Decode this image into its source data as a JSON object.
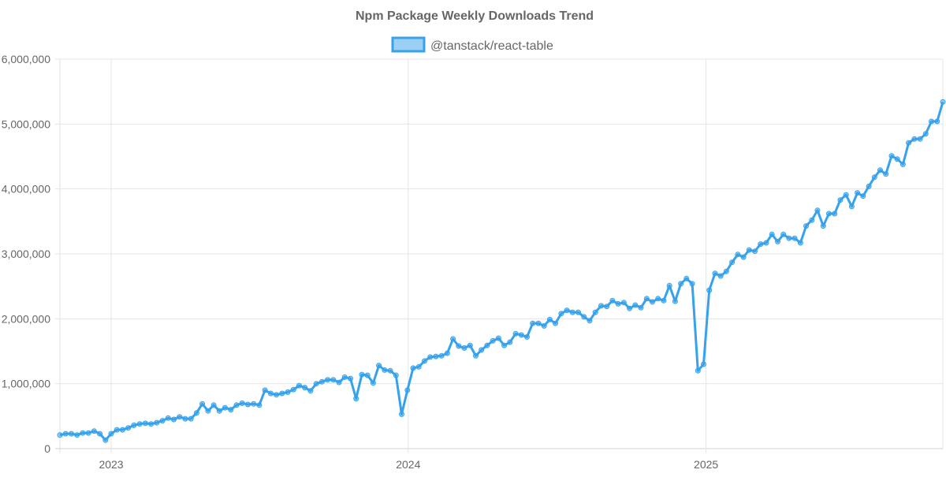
{
  "chart_data": {
    "type": "line",
    "title": "Npm Package Weekly Downloads Trend",
    "legend": {
      "position": "top",
      "entries": [
        "@tanstack/react-table"
      ]
    },
    "colors": {
      "line": "#36A2EB",
      "fill": "#9AD0F5",
      "grid": "#e5e5e5",
      "text": "#666666"
    },
    "grid": true,
    "ylim": [
      0,
      6000000
    ],
    "y_ticks": [
      "0",
      "1,000,000",
      "2,000,000",
      "3,000,000",
      "4,000,000",
      "5,000,000",
      "6,000,000"
    ],
    "x_ticks": [
      "2023",
      "2024",
      "2025"
    ],
    "series": [
      {
        "name": "@tanstack/react-table",
        "x": [
          "2022-10-30",
          "2022-11-06",
          "2022-11-13",
          "2022-11-20",
          "2022-11-27",
          "2022-12-04",
          "2022-12-11",
          "2022-12-18",
          "2022-12-25",
          "2023-01-01",
          "2023-01-08",
          "2023-01-15",
          "2023-01-22",
          "2023-01-29",
          "2023-02-05",
          "2023-02-12",
          "2023-02-19",
          "2023-02-26",
          "2023-03-05",
          "2023-03-12",
          "2023-03-19",
          "2023-03-26",
          "2023-04-02",
          "2023-04-09",
          "2023-04-16",
          "2023-04-23",
          "2023-04-30",
          "2023-05-07",
          "2023-05-14",
          "2023-05-21",
          "2023-05-28",
          "2023-06-04",
          "2023-06-11",
          "2023-06-18",
          "2023-06-25",
          "2023-07-02",
          "2023-07-09",
          "2023-07-16",
          "2023-07-23",
          "2023-07-30",
          "2023-08-06",
          "2023-08-13",
          "2023-08-20",
          "2023-08-27",
          "2023-09-03",
          "2023-09-10",
          "2023-09-17",
          "2023-09-24",
          "2023-10-01",
          "2023-10-08",
          "2023-10-15",
          "2023-10-22",
          "2023-10-29",
          "2023-11-05",
          "2023-11-12",
          "2023-11-19",
          "2023-11-26",
          "2023-12-03",
          "2023-12-10",
          "2023-12-17",
          "2023-12-24",
          "2023-12-31",
          "2024-01-07",
          "2024-01-14",
          "2024-01-21",
          "2024-01-28",
          "2024-02-04",
          "2024-02-11",
          "2024-02-18",
          "2024-02-25",
          "2024-03-03",
          "2024-03-10",
          "2024-03-17",
          "2024-03-24",
          "2024-03-31",
          "2024-04-07",
          "2024-04-14",
          "2024-04-21",
          "2024-04-28",
          "2024-05-05",
          "2024-05-12",
          "2024-05-19",
          "2024-05-26",
          "2024-06-02",
          "2024-06-09",
          "2024-06-16",
          "2024-06-23",
          "2024-06-30",
          "2024-07-07",
          "2024-07-14",
          "2024-07-21",
          "2024-07-28",
          "2024-08-04",
          "2024-08-11",
          "2024-08-18",
          "2024-08-25",
          "2024-09-01",
          "2024-09-08",
          "2024-09-15",
          "2024-09-22",
          "2024-09-29",
          "2024-10-06",
          "2024-10-13",
          "2024-10-20",
          "2024-10-27",
          "2024-11-03",
          "2024-11-10",
          "2024-11-17",
          "2024-11-24",
          "2024-12-01",
          "2024-12-08",
          "2024-12-15",
          "2024-12-22",
          "2024-12-29",
          "2025-01-05",
          "2025-01-12",
          "2025-01-19",
          "2025-01-26",
          "2025-02-02",
          "2025-02-09",
          "2025-02-16",
          "2025-02-23",
          "2025-03-02",
          "2025-03-09",
          "2025-03-16",
          "2025-03-23",
          "2025-03-30",
          "2025-04-06",
          "2025-04-13",
          "2025-04-20",
          "2025-04-27",
          "2025-05-04",
          "2025-05-11",
          "2025-05-18",
          "2025-05-25",
          "2025-06-01",
          "2025-06-08",
          "2025-06-15",
          "2025-06-22",
          "2025-06-29",
          "2025-07-06",
          "2025-07-13",
          "2025-07-20",
          "2025-07-27",
          "2025-08-03",
          "2025-08-10",
          "2025-08-17",
          "2025-08-24",
          "2025-08-31",
          "2025-09-07",
          "2025-09-14",
          "2025-09-21",
          "2025-09-28",
          "2025-10-05",
          "2025-10-12",
          "2025-10-19"
        ],
        "values": [
          210000,
          230000,
          230000,
          210000,
          240000,
          240000,
          270000,
          230000,
          130000,
          230000,
          290000,
          290000,
          320000,
          360000,
          380000,
          390000,
          380000,
          400000,
          430000,
          470000,
          450000,
          490000,
          460000,
          460000,
          550000,
          690000,
          580000,
          670000,
          580000,
          630000,
          600000,
          670000,
          700000,
          680000,
          690000,
          670000,
          900000,
          850000,
          830000,
          850000,
          870000,
          910000,
          970000,
          940000,
          890000,
          1000000,
          1030000,
          1060000,
          1060000,
          1020000,
          1100000,
          1080000,
          770000,
          1140000,
          1130000,
          1010000,
          1280000,
          1210000,
          1200000,
          1130000,
          530000,
          900000,
          1240000,
          1260000,
          1350000,
          1410000,
          1420000,
          1430000,
          1470000,
          1690000,
          1580000,
          1550000,
          1590000,
          1430000,
          1520000,
          1590000,
          1660000,
          1700000,
          1590000,
          1640000,
          1770000,
          1750000,
          1720000,
          1930000,
          1930000,
          1890000,
          1990000,
          1930000,
          2080000,
          2130000,
          2100000,
          2100000,
          2030000,
          1970000,
          2100000,
          2200000,
          2190000,
          2280000,
          2230000,
          2250000,
          2160000,
          2210000,
          2170000,
          2310000,
          2260000,
          2310000,
          2280000,
          2510000,
          2270000,
          2540000,
          2620000,
          2540000,
          1200000,
          1300000,
          2440000,
          2700000,
          2660000,
          2730000,
          2870000,
          2990000,
          2950000,
          3060000,
          3040000,
          3150000,
          3170000,
          3300000,
          3190000,
          3300000,
          3240000,
          3240000,
          3170000,
          3430000,
          3520000,
          3670000,
          3430000,
          3620000,
          3620000,
          3830000,
          3910000,
          3730000,
          3940000,
          3890000,
          4040000,
          4180000,
          4290000,
          4230000,
          4510000,
          4460000,
          4380000,
          4710000,
          4770000,
          4770000,
          4850000,
          5040000,
          5040000,
          5340000
        ]
      }
    ]
  }
}
